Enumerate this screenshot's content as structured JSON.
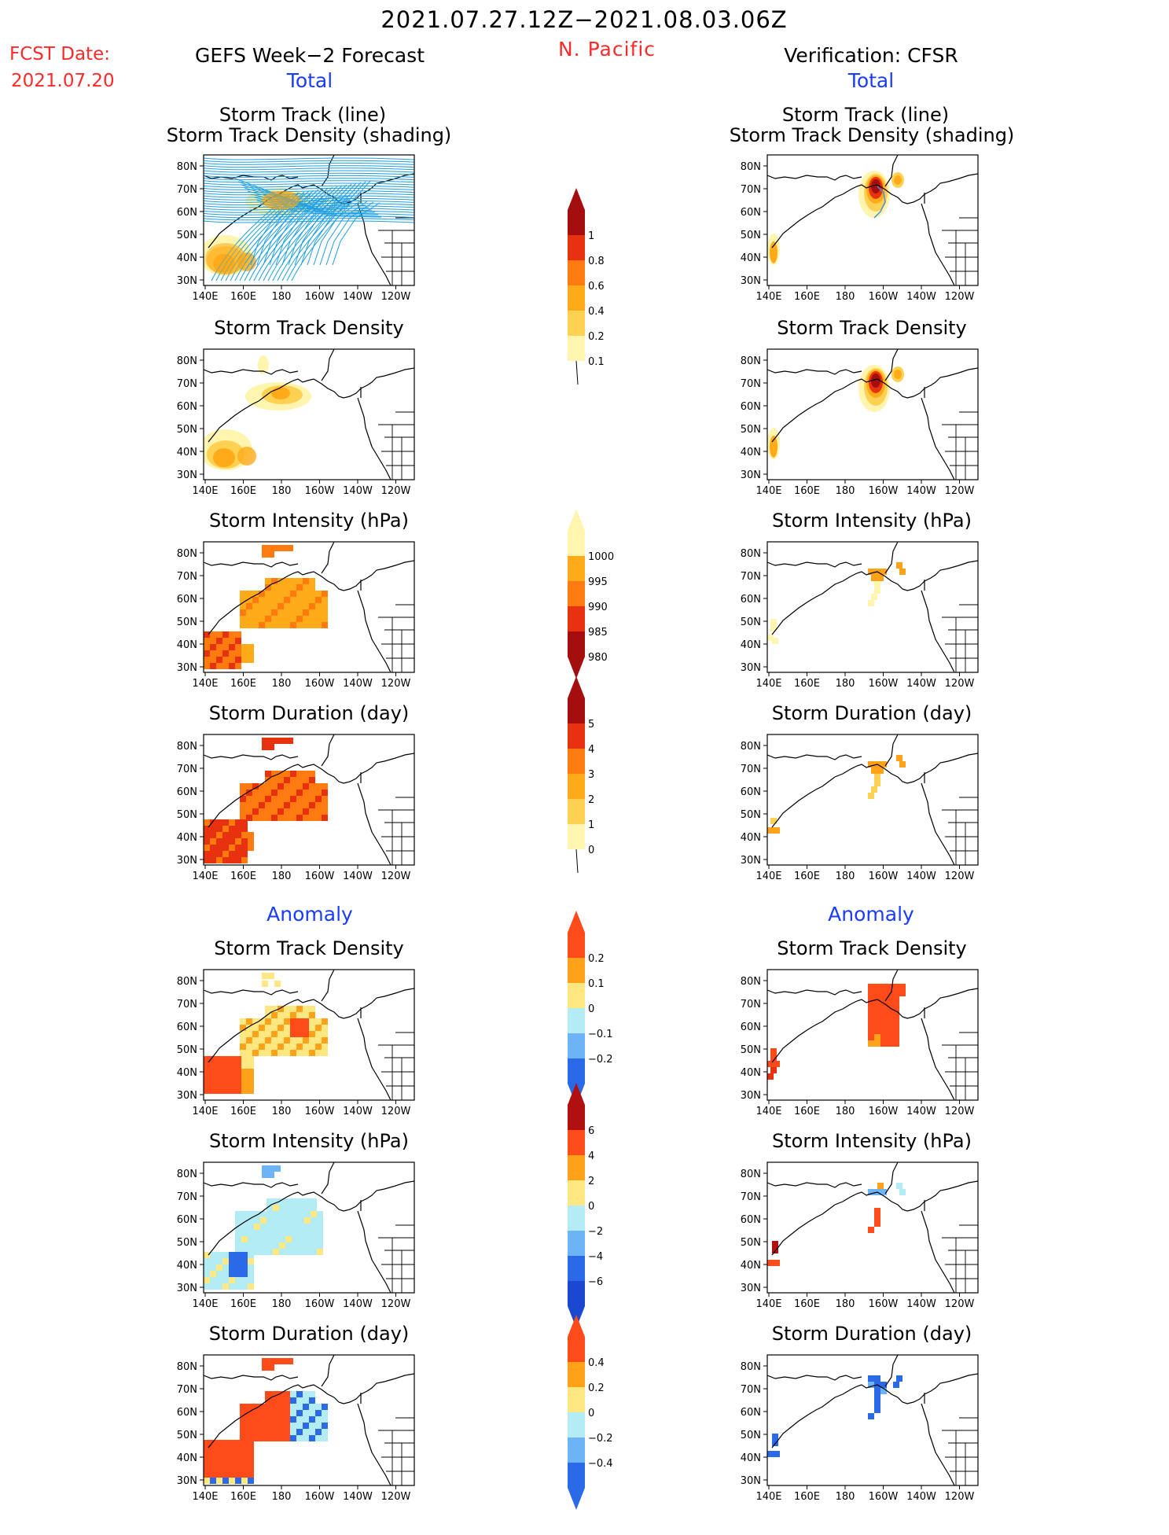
{
  "header": {
    "period": "2021.07.27.12Z−2021.08.03.06Z",
    "region": "N. Pacific",
    "fcst_label": "FCST Date:",
    "fcst_date": "2021.07.20",
    "left_title": "GEFS Week−2 Forecast",
    "right_title": "Verification: CFSR",
    "total_label": "Total",
    "anomaly_label": "Anomaly"
  },
  "axes": {
    "lat_ticks": [
      "80N",
      "70N",
      "60N",
      "50N",
      "40N",
      "30N"
    ],
    "lon_ticks": [
      "140E",
      "160E",
      "180",
      "160W",
      "140W",
      "120W"
    ]
  },
  "panels": {
    "track_line_1": "Storm Track (line)",
    "track_line_2": "Storm Track Density (shading)",
    "density": "Storm Track Density",
    "intensity": "Storm Intensity (hPa)",
    "duration": "Storm Duration (day)"
  },
  "colorbars": [
    {
      "id": "density_total",
      "labels": [
        "1",
        "0.8",
        "0.6",
        "0.4",
        "0.2",
        "0.1"
      ],
      "colors": [
        "#a50e0e",
        "#e8320f",
        "#ff7b0f",
        "#ffaa19",
        "#ffd152",
        "#fff5ae"
      ]
    },
    {
      "id": "intensity_total",
      "labels": [
        "1000",
        "995",
        "990",
        "985",
        "980"
      ],
      "colors": [
        "#fff5ae",
        "#ffaa19",
        "#ff7b0f",
        "#e8320f",
        "#a50e0e"
      ]
    },
    {
      "id": "duration_total",
      "labels": [
        "5",
        "4",
        "3",
        "2",
        "1",
        "0"
      ],
      "colors": [
        "#a50e0e",
        "#e8320f",
        "#ff7b0f",
        "#ffaa19",
        "#ffd152",
        "#fff5ae"
      ]
    },
    {
      "id": "density_anom",
      "labels": [
        "0.2",
        "0.1",
        "0",
        "−0.1",
        "−0.2"
      ],
      "colors": [
        "#ff4a1a",
        "#ffa21a",
        "#ffe882",
        "#b4ecf5",
        "#6cb4f5",
        "#2a6ae8"
      ]
    },
    {
      "id": "intensity_anom",
      "labels": [
        "6",
        "4",
        "2",
        "0",
        "−2",
        "−4",
        "−6"
      ],
      "colors": [
        "#b01010",
        "#ff4a1a",
        "#ffa21a",
        "#ffe882",
        "#b4ecf5",
        "#6cb4f5",
        "#2a6ae8",
        "#1a48d0"
      ]
    },
    {
      "id": "duration_anom",
      "labels": [
        "0.4",
        "0.2",
        "0",
        "−0.2",
        "−0.4"
      ],
      "colors": [
        "#ff4a1a",
        "#ffa21a",
        "#ffe882",
        "#b4ecf5",
        "#6cb4f5",
        "#2a6ae8"
      ]
    }
  ],
  "palette": {
    "line": "#1f9fe0",
    "frame": "#000000"
  }
}
